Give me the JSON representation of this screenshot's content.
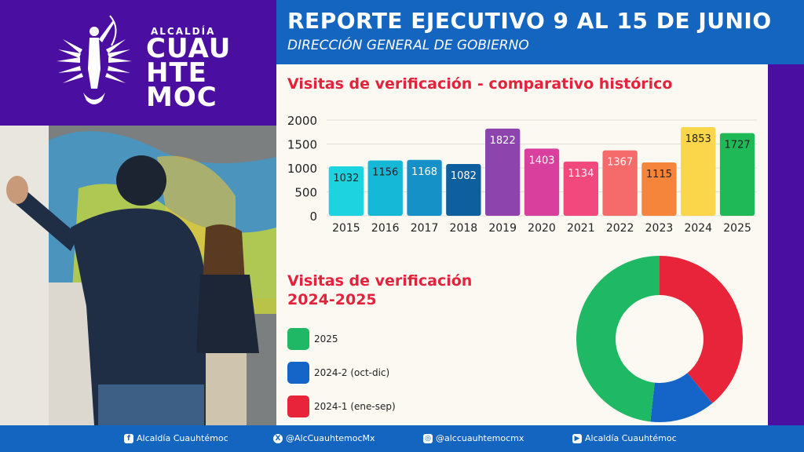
{
  "brand": {
    "top": "ALCALDÍA",
    "name_lines": [
      "CUAU",
      "HTE",
      "MOC"
    ]
  },
  "header": {
    "title": "REPORTE EJECUTIVO 9 AL 15 DE JUNIO",
    "subtitle": "DIRECCIÓN GENERAL DE GOBIERNO"
  },
  "chart_data": [
    {
      "type": "bar",
      "title": "Visitas de verificación - comparativo histórico",
      "categories": [
        "2015",
        "2016",
        "2017",
        "2018",
        "2019",
        "2020",
        "2021",
        "2022",
        "2023",
        "2024",
        "2025"
      ],
      "values": [
        1032,
        1156,
        1168,
        1082,
        1822,
        1403,
        1134,
        1367,
        1115,
        1853,
        1727
      ],
      "colors": [
        "#1ed3e0",
        "#16b8d8",
        "#1591c8",
        "#0e5f9e",
        "#8e44ad",
        "#d93f9c",
        "#f1497d",
        "#f56b6b",
        "#f5853a",
        "#fbd54a",
        "#1fb957"
      ],
      "yticks": [
        0,
        500,
        1000,
        1500,
        2000
      ],
      "ylim": [
        0,
        2000
      ],
      "grid": true
    },
    {
      "type": "pie",
      "title": "Visitas de verificación 2024-2025",
      "labels": [
        "2025",
        "2024-2 (oct-dic)",
        "2024-1 (ene-sep)"
      ],
      "values": [
        1727,
        455,
        1398
      ],
      "colors": [
        "#1fb865",
        "#1565c8",
        "#e8243a"
      ]
    }
  ],
  "footer": {
    "facebook": "Alcaldía Cuauhtémoc",
    "x": "@AlcCuauhtemocMx",
    "instagram": "@alccuauhtemocmx",
    "youtube": "Alcaldía Cuauhtémoc",
    "icons": [
      "facebook-icon",
      "x-icon",
      "instagram-icon",
      "youtube-icon"
    ]
  }
}
